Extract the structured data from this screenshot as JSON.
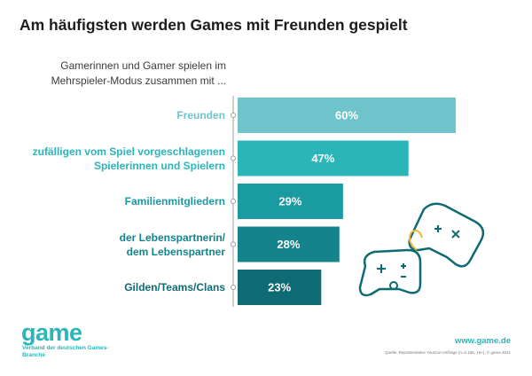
{
  "chart_data": {
    "type": "bar",
    "orientation": "horizontal",
    "title": "Am häufigsten werden Games mit Freunden gespielt",
    "subtitle": "Gamerinnen und Gamer spielen im Mehrspieler-Modus zusammen mit ...",
    "categories": [
      "Freunden",
      "zufälligen vom Spiel vorgeschlagenen\nSpielerinnen und Spielern",
      "Familienmitgliedern",
      "der Lebenspartnerin/\ndem Lebenspartner",
      "Gilden/Teams/Clans"
    ],
    "values": [
      60,
      47,
      29,
      28,
      23
    ],
    "value_labels": [
      "60%",
      "47%",
      "29%",
      "28%",
      "23%"
    ],
    "colors": [
      "#6ec4ca",
      "#2ab5b9",
      "#1a9aa1",
      "#15838b",
      "#0f6b73"
    ],
    "logo": "game",
    "logo_subtitle": "Verband der deutschen Games-Branche",
    "website": "www.game.de",
    "source": "Quelle: Repräsentative YouGov-Umfrage (n=2.156, 16+); © game 2021"
  }
}
